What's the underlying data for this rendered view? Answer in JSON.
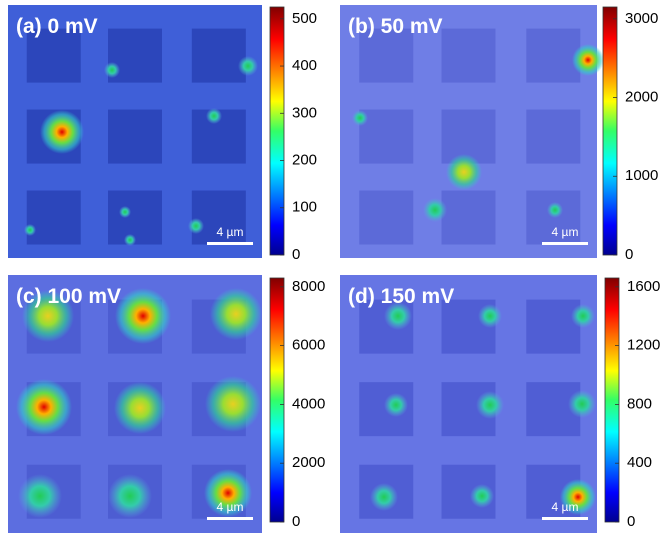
{
  "panels": [
    {
      "label": "(a) 0 mV",
      "scale_bar": "4 µm",
      "colorbar": {
        "lim": [
          0,
          525
        ],
        "ticks": [
          0,
          100,
          200,
          300,
          400,
          500
        ]
      }
    },
    {
      "label": "(b) 50 mV",
      "scale_bar": "4 µm",
      "colorbar": {
        "lim": [
          0,
          3150
        ],
        "ticks": [
          0,
          1000,
          2000,
          3000
        ]
      }
    },
    {
      "label": "(c) 100 mV",
      "scale_bar": "4 µm",
      "colorbar": {
        "lim": [
          0,
          8300
        ],
        "ticks": [
          0,
          2000,
          4000,
          6000,
          8000
        ]
      }
    },
    {
      "label": "(d) 150 mV",
      "scale_bar": "4 µm",
      "colorbar": {
        "lim": [
          0,
          1660
        ],
        "ticks": [
          0,
          400,
          800,
          1200,
          1600
        ]
      }
    }
  ]
}
